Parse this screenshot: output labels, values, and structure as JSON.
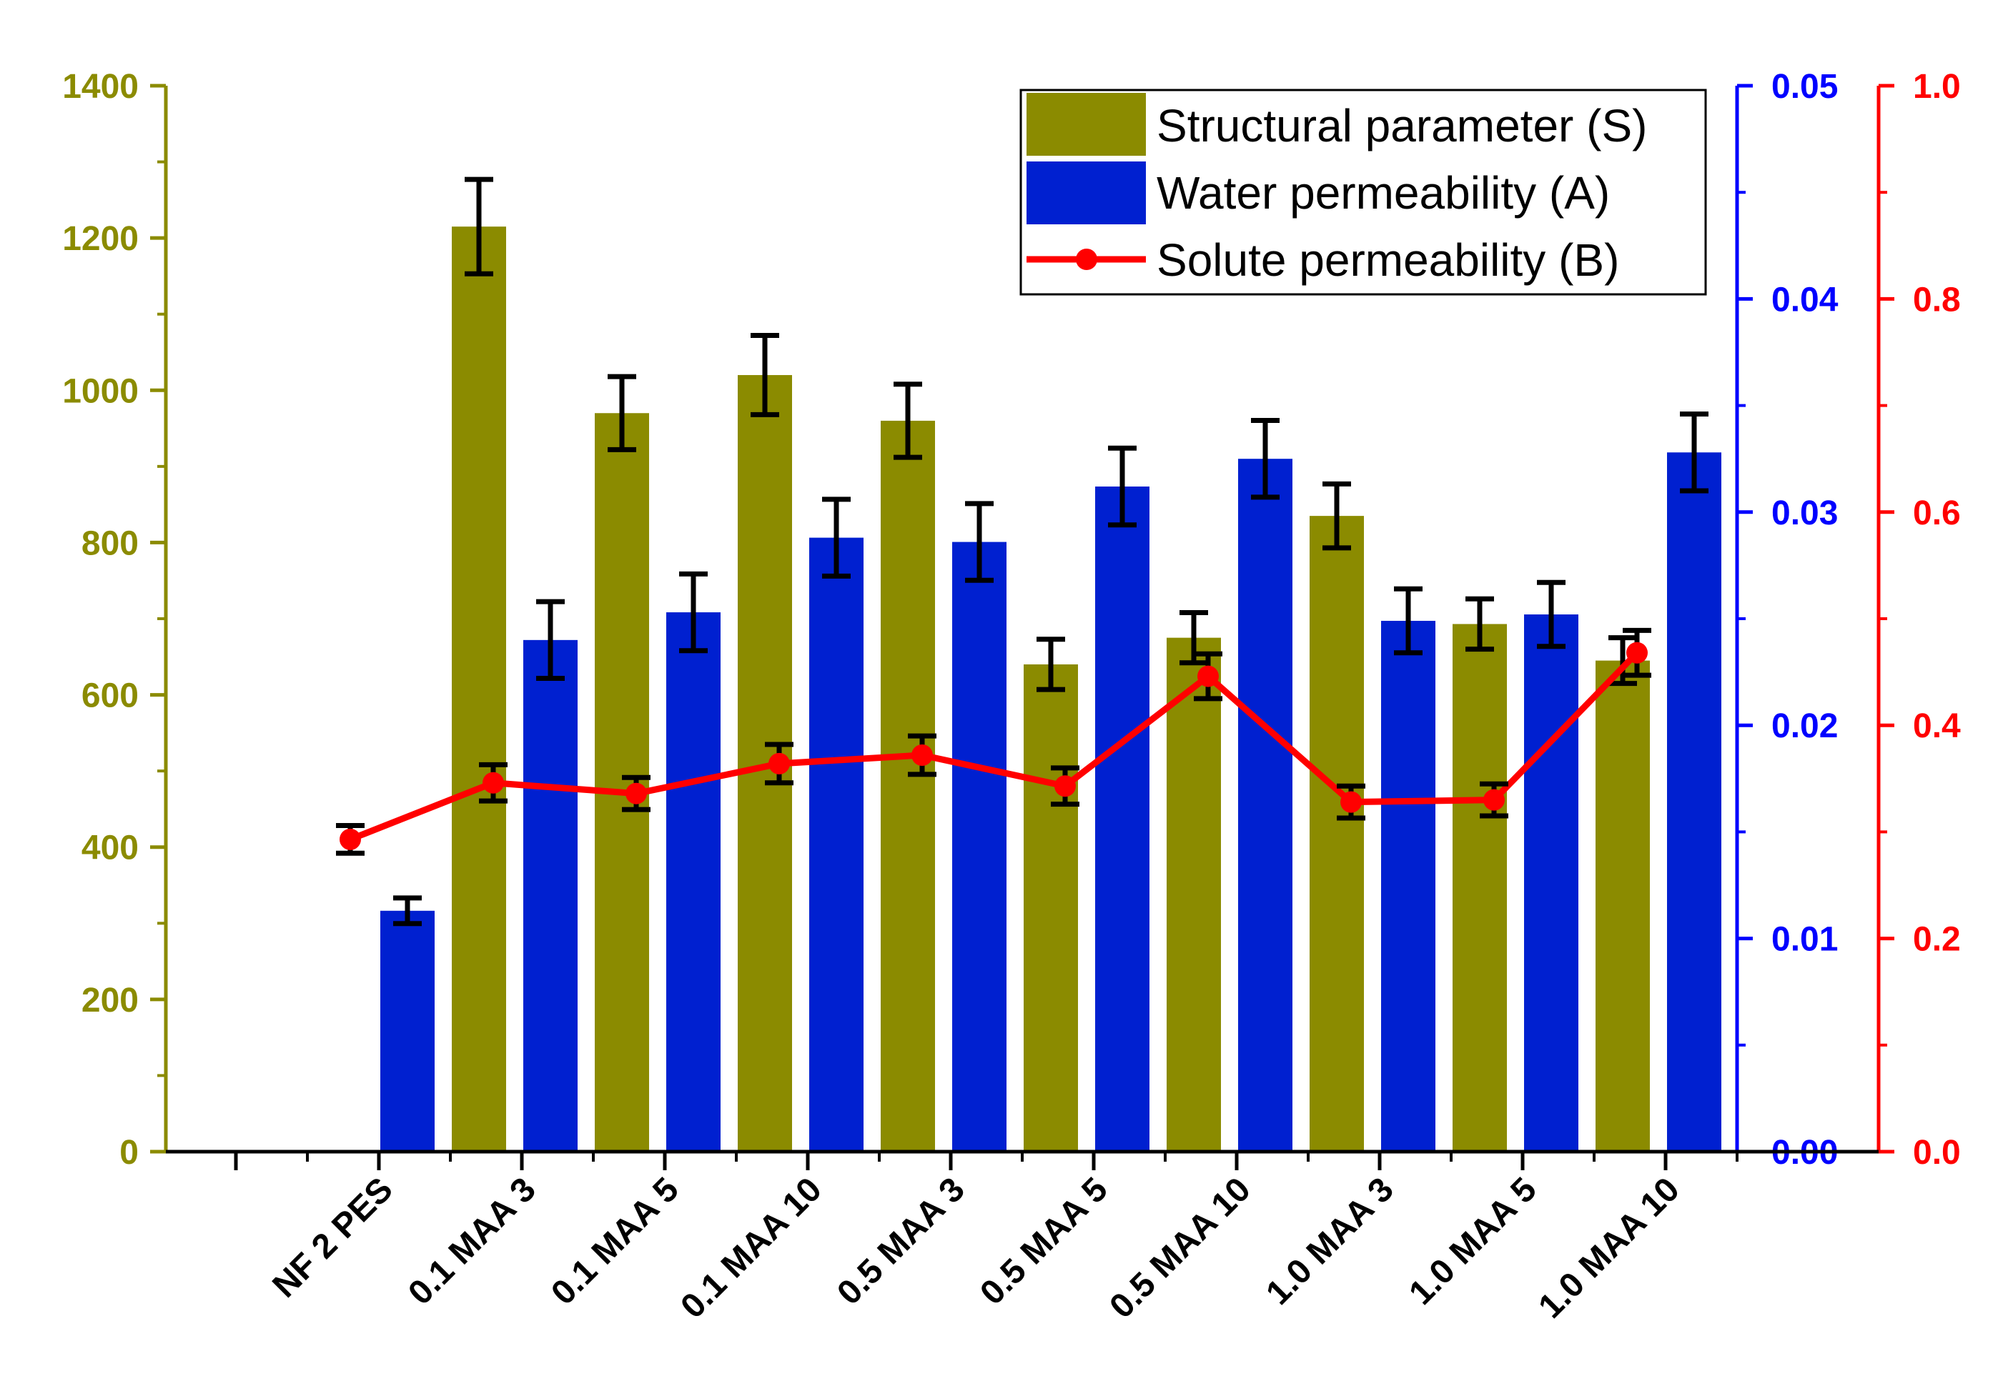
{
  "chart_data": {
    "type": "bar",
    "categories": [
      "NF 2 PES",
      "0.1 MAA 3",
      "0.1 MAA 5",
      "0.1 MAA 10",
      "0.5 MAA 3",
      "0.5 MAA 5",
      "0.5 MAA 10",
      "1.0 MAA 3",
      "1.0 MAA 5",
      "1.0 MAA 10"
    ],
    "series": [
      {
        "name": "Structural parameter (S)",
        "kind": "bar",
        "axis": "left",
        "color": "#8b8b00",
        "values": [
          null,
          1215,
          970,
          1020,
          960,
          640,
          675,
          835,
          693,
          645
        ],
        "errors": [
          null,
          62,
          48,
          52,
          48,
          33,
          33,
          42,
          33,
          30
        ]
      },
      {
        "name": "Water permeability (A)",
        "kind": "bar",
        "axis": "right1",
        "color": "#0020d0",
        "values": [
          0.0113,
          0.024,
          0.0253,
          0.0288,
          0.0286,
          0.0312,
          0.0325,
          0.0249,
          0.0252,
          0.0328
        ],
        "errors": [
          0.0006,
          0.0018,
          0.0018,
          0.0018,
          0.0018,
          0.0018,
          0.0018,
          0.0015,
          0.0015,
          0.0018
        ]
      },
      {
        "name": "Solute permeability (B)",
        "kind": "line",
        "axis": "right2",
        "color": "#ff0000",
        "values": [
          0.293,
          0.346,
          0.336,
          0.364,
          0.372,
          0.343,
          0.446,
          0.328,
          0.33,
          0.468
        ],
        "errors": [
          0.013,
          0.017,
          0.015,
          0.018,
          0.018,
          0.017,
          0.021,
          0.015,
          0.015,
          0.021
        ]
      }
    ],
    "axes": {
      "left": {
        "ylim": [
          0,
          1400
        ],
        "ticks": [
          "0",
          "200",
          "400",
          "600",
          "800",
          "1000",
          "1200",
          "1400"
        ],
        "color": "#8b8b00"
      },
      "right1": {
        "ylim": [
          0,
          0.05
        ],
        "ticks": [
          "0.00",
          "0.01",
          "0.02",
          "0.03",
          "0.04",
          "0.05"
        ],
        "color": "#0000ff"
      },
      "right2": {
        "ylim": [
          0,
          1.0
        ],
        "ticks": [
          "0.0",
          "0.2",
          "0.4",
          "0.6",
          "0.8",
          "1.0"
        ],
        "color": "#ff0000"
      }
    },
    "legend": {
      "placement": "top-right",
      "entries": [
        "Structural parameter (S)",
        "Water permeability (A)",
        "Solute permeability (B)"
      ]
    },
    "title": "",
    "xlabel": "",
    "grid": false
  }
}
